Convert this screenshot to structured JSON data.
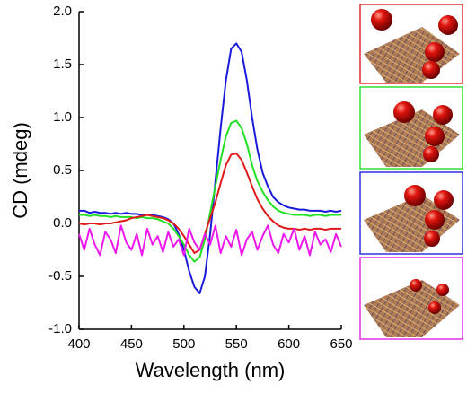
{
  "chart_data": {
    "type": "line",
    "xlabel": "Wavelength (nm)",
    "ylabel": "CD (mdeg)",
    "x": [
      400,
      405,
      410,
      415,
      420,
      425,
      430,
      435,
      440,
      445,
      450,
      455,
      460,
      465,
      470,
      475,
      480,
      485,
      490,
      495,
      500,
      505,
      510,
      515,
      520,
      525,
      530,
      535,
      540,
      545,
      550,
      555,
      560,
      565,
      570,
      575,
      580,
      585,
      590,
      595,
      600,
      605,
      610,
      615,
      620,
      625,
      630,
      635,
      640,
      645,
      650
    ],
    "series": [
      {
        "color": "#1a1adb",
        "values": [
          0.12,
          0.12,
          0.1,
          0.11,
          0.1,
          0.1,
          0.09,
          0.1,
          0.09,
          0.1,
          0.09,
          0.09,
          0.08,
          0.08,
          0.08,
          0.07,
          0.06,
          0.04,
          0.0,
          -0.1,
          -0.25,
          -0.45,
          -0.6,
          -0.66,
          -0.5,
          -0.1,
          0.4,
          0.9,
          1.35,
          1.65,
          1.7,
          1.62,
          1.35,
          1.0,
          0.7,
          0.48,
          0.35,
          0.25,
          0.2,
          0.17,
          0.15,
          0.14,
          0.13,
          0.13,
          0.12,
          0.12,
          0.12,
          0.11,
          0.12,
          0.11,
          0.12
        ]
      },
      {
        "color": "#22e022",
        "values": [
          0.08,
          0.08,
          0.07,
          0.08,
          0.07,
          0.07,
          0.06,
          0.07,
          0.06,
          0.06,
          0.06,
          0.05,
          0.06,
          0.05,
          0.05,
          0.04,
          0.02,
          0.0,
          -0.05,
          -0.12,
          -0.2,
          -0.3,
          -0.36,
          -0.32,
          -0.15,
          0.1,
          0.35,
          0.6,
          0.82,
          0.95,
          0.97,
          0.9,
          0.75,
          0.55,
          0.4,
          0.3,
          0.22,
          0.16,
          0.12,
          0.1,
          0.09,
          0.08,
          0.08,
          0.08,
          0.07,
          0.08,
          0.08,
          0.07,
          0.08,
          0.08,
          0.08
        ]
      },
      {
        "color": "#e01818",
        "values": [
          0.0,
          -0.01,
          0.0,
          0.0,
          -0.01,
          0.0,
          0.0,
          0.01,
          0.02,
          0.03,
          0.05,
          0.06,
          0.07,
          0.08,
          0.07,
          0.06,
          0.05,
          0.03,
          0.0,
          -0.05,
          -0.12,
          -0.2,
          -0.28,
          -0.25,
          -0.1,
          0.05,
          0.2,
          0.38,
          0.55,
          0.65,
          0.66,
          0.6,
          0.48,
          0.35,
          0.23,
          0.14,
          0.07,
          0.02,
          -0.02,
          -0.04,
          -0.05,
          -0.05,
          -0.06,
          -0.05,
          -0.06,
          -0.05,
          -0.05,
          -0.06,
          -0.05,
          -0.05,
          -0.05
        ]
      },
      {
        "color": "#ee18ee",
        "values": [
          -0.1,
          -0.25,
          -0.05,
          -0.2,
          -0.3,
          -0.08,
          -0.15,
          -0.28,
          -0.02,
          -0.18,
          -0.25,
          -0.1,
          -0.3,
          -0.05,
          -0.2,
          -0.12,
          -0.27,
          -0.08,
          -0.22,
          -0.15,
          -0.3,
          -0.05,
          -0.18,
          -0.25,
          -0.1,
          -0.2,
          -0.02,
          -0.28,
          -0.12,
          -0.22,
          -0.06,
          -0.3,
          -0.15,
          -0.08,
          -0.25,
          -0.12,
          -0.02,
          -0.2,
          -0.28,
          -0.1,
          -0.18,
          -0.05,
          -0.25,
          -0.12,
          -0.3,
          -0.08,
          -0.2,
          -0.15,
          -0.27,
          -0.1,
          -0.22
        ]
      }
    ],
    "xlim": [
      400,
      650
    ],
    "xticks": [
      400,
      450,
      500,
      550,
      600,
      650
    ],
    "ylim": [
      -1,
      2
    ],
    "yticks": [
      {
        "value": -1,
        "label": "-1.0"
      },
      {
        "value": -0.5,
        "label": "-0.5"
      },
      {
        "value": 0,
        "label": "0.0"
      },
      {
        "value": 0.5,
        "label": "0.5"
      },
      {
        "value": 1,
        "label": "1.0"
      },
      {
        "value": 1.5,
        "label": "1.5"
      },
      {
        "value": 2,
        "label": "2.0"
      }
    ],
    "grid": false
  }
}
